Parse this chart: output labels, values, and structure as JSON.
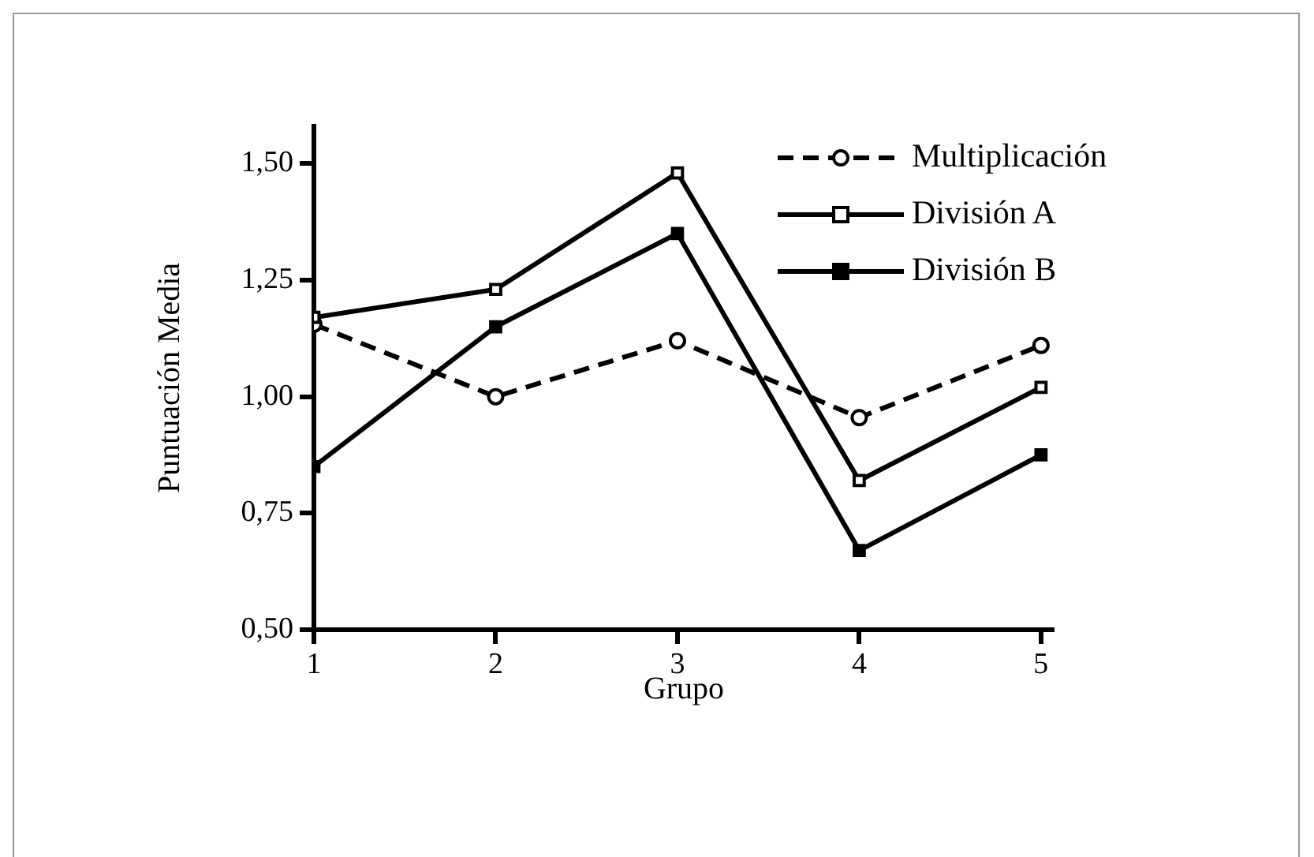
{
  "chart_data": {
    "type": "line",
    "xlabel": "Grupo",
    "ylabel": "Puntuación Media",
    "x": [
      1,
      2,
      3,
      4,
      5
    ],
    "xlim": [
      1,
      5.07
    ],
    "xticks": [
      1,
      2,
      3,
      4,
      5
    ],
    "ylim": [
      0.5,
      1.58
    ],
    "yticks": [
      {
        "value": 0.5,
        "label": "0,50"
      },
      {
        "value": 0.75,
        "label": "0,75"
      },
      {
        "value": 1,
        "label": "1,00"
      },
      {
        "value": 1.25,
        "label": "1,25"
      },
      {
        "value": 1.5,
        "label": "1,50"
      }
    ],
    "grid": false,
    "legend": "top right",
    "series": [
      {
        "name": "Multiplicación",
        "color": "#000000",
        "values": [
          1.155,
          1.0,
          1.12,
          0.955,
          1.11
        ],
        "marker": "circle",
        "line_style": "dashed"
      },
      {
        "name": "División A",
        "color": "#000000",
        "values": [
          1.17,
          1.23,
          1.48,
          0.82,
          1.02
        ],
        "marker": "square",
        "line_style": "solid"
      },
      {
        "name": "División B",
        "color": "#000000",
        "values": [
          0.85,
          1.15,
          1.35,
          0.67,
          0.875
        ],
        "marker": "square",
        "line_style": "solid"
      }
    ]
  }
}
